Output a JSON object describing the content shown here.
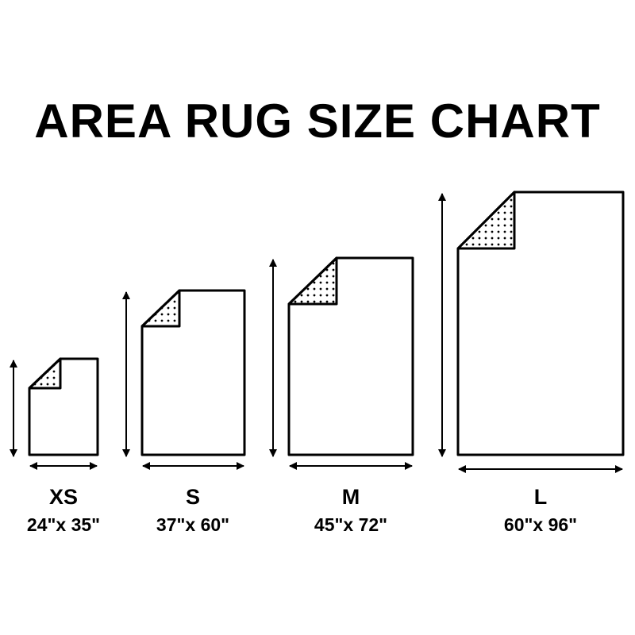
{
  "title": "AREA RUG SIZE CHART",
  "colors": {
    "ink": "#000000",
    "background": "#ffffff"
  },
  "sizes": [
    {
      "name": "XS",
      "dimensions": "24\"x 35\""
    },
    {
      "name": "S",
      "dimensions": "37\"x 60\""
    },
    {
      "name": "M",
      "dimensions": "45\"x 72\""
    },
    {
      "name": "L",
      "dimensions": "60\"x 96\""
    }
  ]
}
